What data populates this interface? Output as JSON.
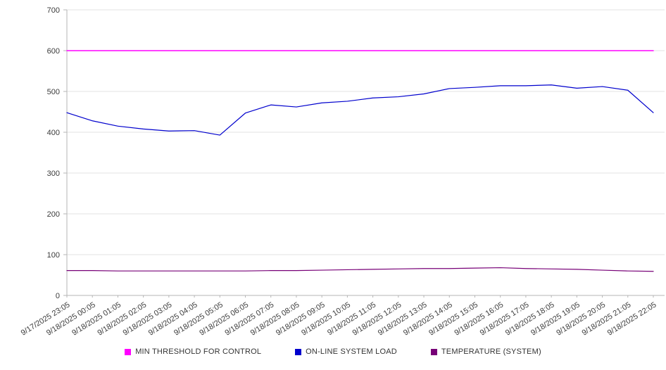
{
  "chart_data": {
    "type": "line",
    "title": "",
    "xlabel": "",
    "ylabel": "",
    "ylim": [
      0,
      700
    ],
    "ytick_step": 100,
    "grid": true,
    "legend_position": "bottom",
    "categories": [
      "9/17/2025 23:05",
      "9/18/2025 00:05",
      "9/18/2025 01:05",
      "9/18/2025 02:05",
      "9/18/2025 03:05",
      "9/18/2025 04:05",
      "9/18/2025 05:05",
      "9/18/2025 06:05",
      "9/18/2025 07:05",
      "9/18/2025 08:05",
      "9/18/2025 09:05",
      "9/18/2025 10:05",
      "9/18/2025 11:05",
      "9/18/2025 12:05",
      "9/18/2025 13:05",
      "9/18/2025 14:05",
      "9/18/2025 15:05",
      "9/18/2025 16:05",
      "9/18/2025 17:05",
      "9/18/2025 18:05",
      "9/18/2025 19:05",
      "9/18/2025 20:05",
      "9/18/2025 21:05",
      "9/18/2025 22:05"
    ],
    "series": [
      {
        "name": "MIN THRESHOLD FOR CONTROL",
        "color": "#ff00ff",
        "width": 1.5,
        "values": [
          600,
          600,
          600,
          600,
          600,
          600,
          600,
          600,
          600,
          600,
          600,
          600,
          600,
          600,
          600,
          600,
          600,
          600,
          600,
          600,
          600,
          600,
          600,
          600
        ]
      },
      {
        "name": "ON-LINE SYSTEM LOAD",
        "color": "#0000cd",
        "width": 1.2,
        "values": [
          448,
          428,
          415,
          408,
          403,
          404,
          393,
          447,
          467,
          462,
          472,
          476,
          484,
          487,
          494,
          507,
          510,
          514,
          514,
          516,
          508,
          512,
          503,
          448
        ]
      },
      {
        "name": "TEMPERATURE (SYSTEM)",
        "color": "#770077",
        "width": 1.2,
        "values": [
          61,
          61,
          60,
          60,
          60,
          60,
          60,
          60,
          61,
          61,
          62,
          63,
          64,
          65,
          66,
          66,
          67,
          68,
          66,
          65,
          64,
          62,
          60,
          59
        ]
      }
    ]
  }
}
